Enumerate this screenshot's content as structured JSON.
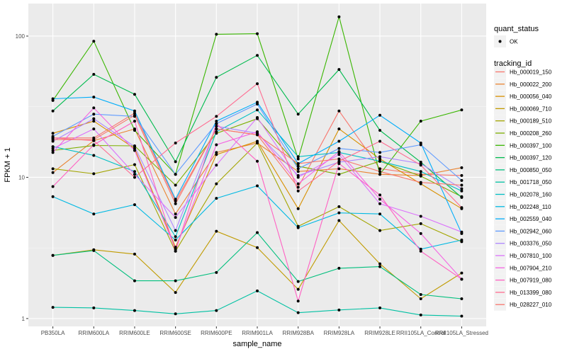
{
  "chart_data": {
    "type": "line",
    "title": "",
    "xlabel": "sample_name",
    "ylabel": "FPKM + 1",
    "yscale": "log10",
    "ylim": [
      0.88,
      170
    ],
    "yticks": [
      1,
      10,
      100
    ],
    "ytick_labels": [
      "1",
      "10",
      "100"
    ],
    "grid": true,
    "legend_position": "right",
    "categories": [
      "PB350LA",
      "RRIM600LA",
      "RRIM600LE",
      "RRIM600SE",
      "RRIM600PE",
      "RRIM901LA",
      "RRIM928BA",
      "RRIM928LA",
      "RRIM928LE",
      "RRII105LA_Control",
      "RRII105LA_Stressed"
    ],
    "point_legend": {
      "title": "quant_status",
      "items": [
        "OK"
      ]
    },
    "line_legend_title": "tracking_id",
    "series": [
      {
        "name": "Hb_000019_150",
        "color": "#F8766D",
        "values": [
          19.0,
          19.0,
          28.5,
          6.8,
          22.0,
          20.0,
          8.5,
          29.5,
          11.5,
          10.5,
          10.3
        ]
      },
      {
        "name": "Hb_000022_200",
        "color": "#EA8331",
        "values": [
          10.8,
          18.2,
          22.0,
          5.5,
          15.0,
          17.5,
          11.0,
          11.5,
          10.5,
          10.3,
          11.7
        ]
      },
      {
        "name": "Hb_000056_040",
        "color": "#D89000",
        "values": [
          20.5,
          25.0,
          16.0,
          3.2,
          14.5,
          18.0,
          6.0,
          22.0,
          13.5,
          9.0,
          6.0
        ]
      },
      {
        "name": "Hb_000069_710",
        "color": "#C09B00",
        "values": [
          2.8,
          3.07,
          2.86,
          1.53,
          4.15,
          3.18,
          1.61,
          4.94,
          2.44,
          1.38,
          2.1
        ]
      },
      {
        "name": "Hb_000189_510",
        "color": "#A3A500",
        "values": [
          11.5,
          10.6,
          12.3,
          3.0,
          9.0,
          17.5,
          4.5,
          6.2,
          4.2,
          4.7,
          3.5
        ]
      },
      {
        "name": "Hb_000208_260",
        "color": "#7CAE00",
        "values": [
          15.5,
          16.8,
          16.7,
          8.8,
          20.5,
          26.0,
          12.0,
          10.5,
          13.0,
          10.2,
          7.3
        ]
      },
      {
        "name": "Hb_000397_100",
        "color": "#39B600",
        "values": [
          35.0,
          92.0,
          21.5,
          10.5,
          103.0,
          104.0,
          13.5,
          137.0,
          10.5,
          25.0,
          30.0
        ]
      },
      {
        "name": "Hb_000397_120",
        "color": "#00BB4E",
        "values": [
          29.5,
          53.6,
          38.7,
          12.9,
          51.0,
          73.0,
          28.0,
          58.0,
          21.5,
          12.8,
          7.2
        ]
      },
      {
        "name": "Hb_000850_050",
        "color": "#00BF7D",
        "values": [
          2.8,
          3.03,
          1.85,
          1.85,
          2.12,
          4.06,
          1.83,
          2.27,
          2.33,
          1.48,
          1.38
        ]
      },
      {
        "name": "Hb_001718_050",
        "color": "#00C1A3",
        "values": [
          1.2,
          1.19,
          1.14,
          1.08,
          1.14,
          1.57,
          1.1,
          1.15,
          1.19,
          1.06,
          1.04
        ]
      },
      {
        "name": "Hb_002078_160",
        "color": "#00BFC4",
        "values": [
          16.5,
          14.3,
          11.0,
          3.8,
          21.0,
          30.0,
          14.0,
          15.0,
          13.0,
          11.0,
          8.0
        ]
      },
      {
        "name": "Hb_002248_110",
        "color": "#00B9E3",
        "values": [
          7.3,
          5.5,
          6.4,
          3.6,
          7.1,
          8.7,
          4.4,
          5.6,
          5.5,
          3.1,
          3.6
        ]
      },
      {
        "name": "Hb_002559_040",
        "color": "#00ADFA",
        "values": [
          36.0,
          37.0,
          29.5,
          7.0,
          25.0,
          34.0,
          12.5,
          18.0,
          27.5,
          17.5,
          4.0
        ]
      },
      {
        "name": "Hb_002942_060",
        "color": "#619CFF",
        "values": [
          19.5,
          28.0,
          27.0,
          10.5,
          24.0,
          33.0,
          11.5,
          16.0,
          15.0,
          17.0,
          9.5
        ]
      },
      {
        "name": "Hb_003376_050",
        "color": "#AE87FF",
        "values": [
          18.0,
          26.0,
          16.5,
          4.2,
          23.0,
          20.5,
          10.3,
          12.8,
          14.0,
          12.5,
          8.3
        ]
      },
      {
        "name": "Hb_007810_100",
        "color": "#DB72FB",
        "values": [
          16.0,
          22.0,
          10.5,
          5.2,
          12.2,
          26.5,
          10.0,
          14.5,
          6.5,
          5.3,
          4.1
        ]
      },
      {
        "name": "Hb_007904_210",
        "color": "#F564E3",
        "values": [
          15.0,
          31.0,
          15.5,
          3.1,
          17.0,
          21.0,
          9.0,
          15.2,
          7.0,
          4.0,
          1.9
        ]
      },
      {
        "name": "Hb_007919_080",
        "color": "#FF61C3",
        "values": [
          8.6,
          17.0,
          25.0,
          3.0,
          24.0,
          13.0,
          1.33,
          12.5,
          7.5,
          3.0,
          1.9
        ]
      },
      {
        "name": "Hb_013399_080",
        "color": "#FF6C91",
        "values": [
          19.0,
          18.2,
          10.0,
          17.5,
          27.0,
          46.0,
          8.0,
          13.0,
          18.0,
          12.2,
          6.1
        ]
      },
      {
        "name": "Hb_028227_010",
        "color": "#F8766D",
        "values": [
          18.5,
          18.5,
          27.5,
          6.5,
          22.0,
          20.0,
          12.5,
          13.5,
          11.0,
          9.2,
          8.8
        ]
      }
    ]
  }
}
